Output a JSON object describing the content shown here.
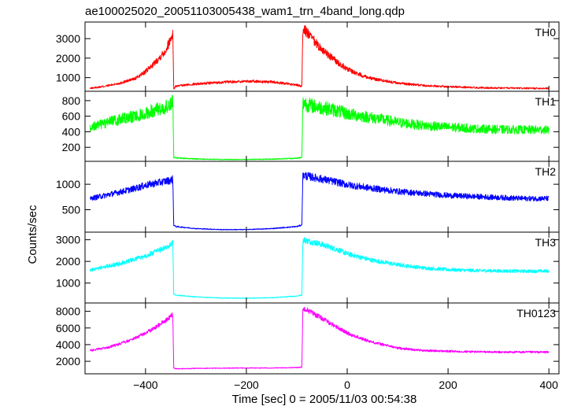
{
  "chart_data": {
    "type": "line",
    "title": "ae100025020_20051103005438_wam1_trn_4band_long.qdp",
    "xlabel": "Time [sec] 0 = 2005/11/03 00:54:38",
    "ylabel": "Counts/sec",
    "xlim": [
      -520,
      420
    ],
    "xticks": [
      -400,
      -200,
      0,
      200,
      400
    ],
    "xtick_labels": [
      "−400",
      "−200",
      "0",
      "200",
      "400"
    ],
    "grid": false,
    "panels": [
      {
        "name": "TH0",
        "color": "#ff0000",
        "ylim": [
          300,
          3850
        ],
        "yticks": [
          1000,
          2000,
          3000
        ],
        "ytick_labels": [
          "1000",
          "2000",
          "3000"
        ],
        "x": [
          -510,
          -480,
          -450,
          -420,
          -400,
          -380,
          -360,
          -350,
          -346,
          -344,
          -340,
          -300,
          -250,
          -200,
          -150,
          -100,
          -90,
          -88,
          -85,
          -80,
          -60,
          -40,
          -20,
          0,
          20,
          50,
          100,
          150,
          200,
          250,
          300,
          350,
          400
        ],
        "y": [
          450,
          560,
          720,
          960,
          1300,
          1800,
          2400,
          3000,
          3300,
          420,
          560,
          680,
          760,
          820,
          780,
          620,
          560,
          3400,
          3550,
          3300,
          2700,
          2200,
          1800,
          1450,
          1200,
          950,
          720,
          600,
          540,
          490,
          470,
          455,
          450
        ],
        "noise": 0.09
      },
      {
        "name": "TH1",
        "color": "#00ff00",
        "ylim": [
          20,
          920
        ],
        "yticks": [
          200,
          400,
          600,
          800
        ],
        "ytick_labels": [
          "200",
          "400",
          "600",
          "800"
        ],
        "x": [
          -510,
          -480,
          -450,
          -420,
          -400,
          -380,
          -360,
          -350,
          -346,
          -344,
          -340,
          -300,
          -250,
          -200,
          -150,
          -100,
          -90,
          -88,
          -85,
          -80,
          -60,
          -40,
          -20,
          0,
          50,
          100,
          150,
          200,
          250,
          300,
          350,
          400
        ],
        "y": [
          460,
          510,
          560,
          600,
          640,
          680,
          720,
          760,
          800,
          70,
          65,
          50,
          44,
          44,
          48,
          60,
          70,
          760,
          780,
          750,
          720,
          700,
          670,
          630,
          580,
          520,
          480,
          460,
          440,
          430,
          425,
          425
        ],
        "noise": 0.13
      },
      {
        "name": "TH2",
        "color": "#0000ff",
        "ylim": [
          60,
          1450
        ],
        "yticks": [
          500,
          1000
        ],
        "ytick_labels": [
          "500",
          "1000"
        ],
        "x": [
          -510,
          -480,
          -450,
          -420,
          -400,
          -380,
          -360,
          -350,
          -346,
          -344,
          -340,
          -300,
          -250,
          -200,
          -150,
          -100,
          -90,
          -88,
          -85,
          -80,
          -60,
          -40,
          -20,
          0,
          50,
          100,
          150,
          200,
          250,
          300,
          350,
          400
        ],
        "y": [
          720,
          780,
          850,
          920,
          980,
          1020,
          1060,
          1080,
          1100,
          200,
          170,
          130,
          110,
          110,
          130,
          170,
          200,
          1150,
          1180,
          1160,
          1120,
          1080,
          1040,
          990,
          920,
          860,
          820,
          780,
          760,
          740,
          720,
          720
        ],
        "noise": 0.07
      },
      {
        "name": "TH3",
        "color": "#00ffff",
        "ylim": [
          80,
          3350
        ],
        "yticks": [
          1000,
          2000,
          3000
        ],
        "ytick_labels": [
          "1000",
          "2000",
          "3000"
        ],
        "x": [
          -510,
          -480,
          -450,
          -420,
          -400,
          -380,
          -360,
          -350,
          -346,
          -344,
          -340,
          -300,
          -250,
          -200,
          -150,
          -100,
          -90,
          -88,
          -85,
          -80,
          -60,
          -40,
          -20,
          0,
          50,
          100,
          150,
          200,
          250,
          300,
          350,
          400
        ],
        "y": [
          1600,
          1750,
          1900,
          2100,
          2250,
          2450,
          2650,
          2800,
          2900,
          480,
          440,
          360,
          310,
          300,
          320,
          400,
          450,
          2950,
          3000,
          2950,
          2850,
          2700,
          2550,
          2350,
          2050,
          1850,
          1700,
          1620,
          1580,
          1560,
          1550,
          1550
        ],
        "noise": 0.05
      },
      {
        "name": "TH0123",
        "color": "#ff00ff",
        "ylim": [
          500,
          9000
        ],
        "yticks": [
          2000,
          4000,
          6000,
          8000
        ],
        "ytick_labels": [
          "2000",
          "4000",
          "6000",
          "8000"
        ],
        "x": [
          -510,
          -480,
          -450,
          -420,
          -400,
          -380,
          -360,
          -350,
          -346,
          -344,
          -340,
          -300,
          -250,
          -200,
          -150,
          -100,
          -90,
          -88,
          -85,
          -80,
          -60,
          -40,
          -20,
          0,
          20,
          50,
          100,
          150,
          200,
          250,
          300,
          350,
          400
        ],
        "y": [
          3300,
          3600,
          4100,
          4800,
          5400,
          6100,
          6900,
          7400,
          7600,
          1200,
          1100,
          1150,
          1180,
          1200,
          1200,
          1250,
          1300,
          8000,
          8400,
          8200,
          7500,
          6800,
          6100,
          5400,
          4900,
          4300,
          3600,
          3300,
          3200,
          3150,
          3100,
          3100,
          3100
        ],
        "noise": 0.04
      }
    ]
  }
}
